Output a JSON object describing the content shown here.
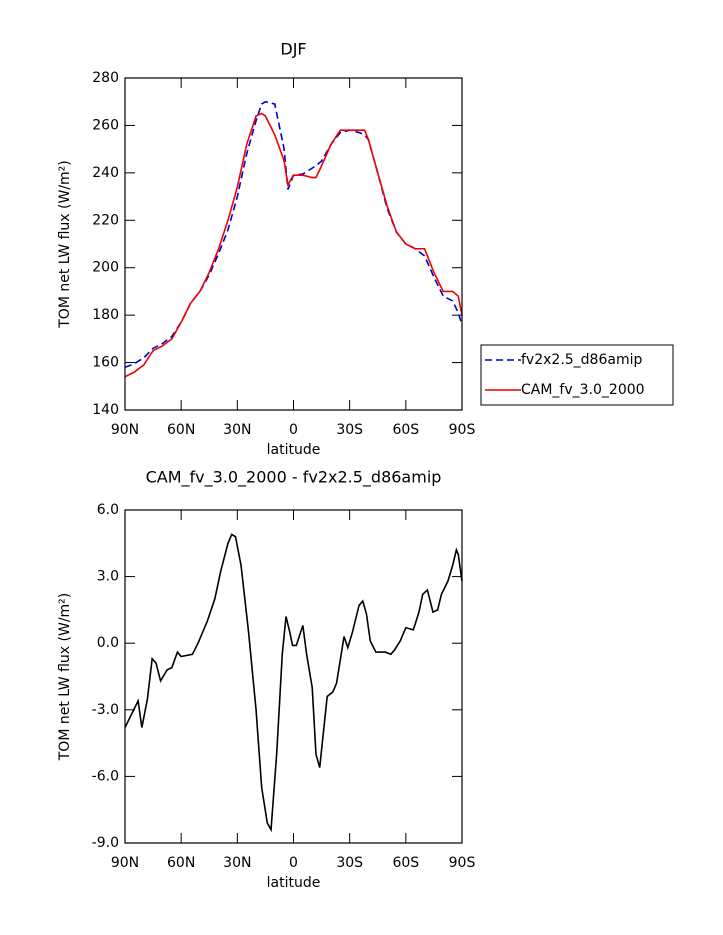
{
  "chart_data": [
    {
      "type": "line",
      "title": "DJF",
      "xlabel": "latitude",
      "ylabel": "TOM net LW flux (W/m²)",
      "x": [
        90,
        85,
        80,
        75,
        70,
        65,
        60,
        55,
        50,
        45,
        40,
        35,
        30,
        25,
        20,
        17,
        15,
        10,
        5,
        3,
        0,
        -5,
        -10,
        -12,
        -15,
        -20,
        -25,
        -30,
        -35,
        -38,
        -40,
        -45,
        -50,
        -55,
        -60,
        -65,
        -70,
        -75,
        -80,
        -85,
        -88,
        -90
      ],
      "series": [
        {
          "name": "fv2x2.5_d86amip",
          "color": "#0000cc",
          "style": "dashed",
          "values": [
            158,
            159.5,
            162,
            166,
            168,
            171,
            177,
            185,
            190,
            197,
            206,
            216,
            230,
            248,
            262,
            269,
            270,
            269,
            250,
            233,
            239,
            239.5,
            242,
            243,
            245,
            252,
            257,
            258,
            257,
            256,
            254,
            240,
            225,
            215,
            210,
            208,
            205,
            196,
            188,
            186,
            181,
            176
          ]
        },
        {
          "name": "CAM_fv_3.0_2000",
          "color": "#ee0000",
          "style": "solid",
          "values": [
            154,
            156,
            159,
            165,
            167,
            170,
            177,
            185,
            190,
            198,
            208,
            220,
            234,
            252,
            264,
            265,
            264,
            256,
            245,
            235,
            239,
            239,
            238,
            238,
            243,
            252,
            258,
            258,
            258,
            258,
            254,
            240,
            226,
            215,
            210,
            208,
            208,
            198,
            190,
            190,
            188,
            180
          ]
        }
      ],
      "xlim": [
        90,
        -90
      ],
      "xticks": [
        {
          "value": 90,
          "label": "90N"
        },
        {
          "value": 60,
          "label": "60N"
        },
        {
          "value": 30,
          "label": "30N"
        },
        0,
        {
          "value": -30,
          "label": "30S"
        },
        {
          "value": -60,
          "label": "60S"
        },
        {
          "value": -90,
          "label": "90S"
        }
      ],
      "ylim": [
        140,
        280
      ],
      "yticks": [
        140,
        160,
        180,
        200,
        220,
        240,
        260,
        280
      ],
      "legend": "right"
    },
    {
      "type": "line",
      "title": "CAM_fv_3.0_2000 - fv2x2.5_d86amip",
      "xlabel": "latitude",
      "ylabel": "TOM net LW flux (W/m²)",
      "x": [
        90,
        83,
        81,
        78,
        75.5,
        73.4,
        71,
        67.5,
        65,
        62,
        60,
        54,
        51,
        46,
        42,
        39,
        35,
        33,
        31,
        28,
        24,
        20,
        17,
        14,
        12,
        9,
        6,
        4,
        2,
        0.5,
        -1.5,
        -5,
        -7,
        -10,
        -12,
        -14,
        -18,
        -21,
        -23,
        -27,
        -29,
        -31.5,
        -35,
        -37,
        -39,
        -41,
        -44,
        -49,
        -52,
        -54,
        -57,
        -60,
        -64,
        -67,
        -69,
        -71.5,
        -74.5,
        -77,
        -79,
        -82.5,
        -85,
        -87,
        -88,
        -90
      ],
      "series": [
        {
          "name": null,
          "color": "#000000",
          "style": "solid",
          "values": [
            -3.8,
            -2.6,
            -3.8,
            -2.5,
            -0.7,
            -0.9,
            -1.7,
            -1.2,
            -1.1,
            -0.4,
            -0.6,
            -0.5,
            0.0,
            1.0,
            2.0,
            3.2,
            4.5,
            4.9,
            4.8,
            3.5,
            0.5,
            -3.0,
            -6.5,
            -8.1,
            -8.4,
            -5.0,
            -0.5,
            1.2,
            0.5,
            -0.1,
            -0.1,
            0.8,
            -0.5,
            -2.0,
            -5.0,
            -5.6,
            -2.4,
            -2.2,
            -1.8,
            0.3,
            -0.2,
            0.5,
            1.7,
            1.9,
            1.3,
            0.1,
            -0.4,
            -0.4,
            -0.5,
            -0.3,
            0.1,
            0.7,
            0.6,
            1.4,
            2.2,
            2.4,
            1.4,
            1.5,
            2.2,
            2.8,
            3.5,
            4.2,
            4.0,
            2.8
          ]
        }
      ],
      "xlim": [
        90,
        -90
      ],
      "xticks": [
        {
          "value": 90,
          "label": "90N"
        },
        {
          "value": 60,
          "label": "60N"
        },
        {
          "value": 30,
          "label": "30N"
        },
        0,
        {
          "value": -30,
          "label": "30S"
        },
        {
          "value": -60,
          "label": "60S"
        },
        {
          "value": -90,
          "label": "90S"
        }
      ],
      "ylim": [
        -9,
        6
      ],
      "yticks": [
        {
          "value": -9,
          "label": "-9.0"
        },
        {
          "value": -6,
          "label": "-6.0"
        },
        {
          "value": -3,
          "label": "-3.0"
        },
        {
          "value": 0,
          "label": "0.0"
        },
        {
          "value": 3,
          "label": "3.0"
        },
        {
          "value": 6,
          "label": "6.0"
        }
      ]
    }
  ]
}
